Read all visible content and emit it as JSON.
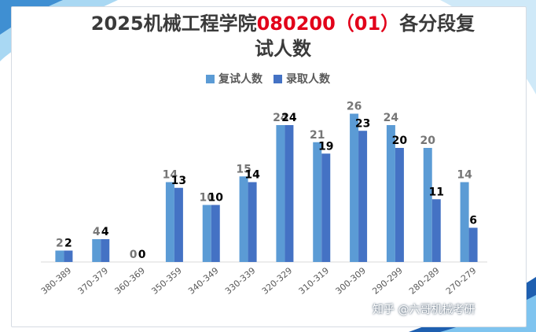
{
  "title_parts": {
    "a": "2025机械工程学院",
    "b": "080200（01）",
    "c": "各分段复",
    "d": "试人数"
  },
  "watermark": "知乎 @六哥机械考研",
  "colors": {
    "series1": "#5b9bd5",
    "series2": "#4472c4",
    "title_red": "#e2001a"
  },
  "chart_data": {
    "type": "bar",
    "title": "2025机械工程学院080200（01）各分段复试人数",
    "categories": [
      "380-389",
      "370-379",
      "360-369",
      "350-359",
      "340-349",
      "330-339",
      "320-329",
      "310-319",
      "300-309",
      "290-299",
      "280-289",
      "270-279"
    ],
    "series": [
      {
        "name": "复试人数",
        "values": [
          2,
          4,
          0,
          14,
          10,
          15,
          24,
          21,
          26,
          24,
          20,
          14
        ]
      },
      {
        "name": "录取人数",
        "values": [
          2,
          4,
          0,
          13,
          10,
          14,
          24,
          19,
          23,
          20,
          11,
          6
        ]
      }
    ],
    "ylim": [
      0,
      30
    ],
    "grid": false,
    "legend": "top"
  }
}
